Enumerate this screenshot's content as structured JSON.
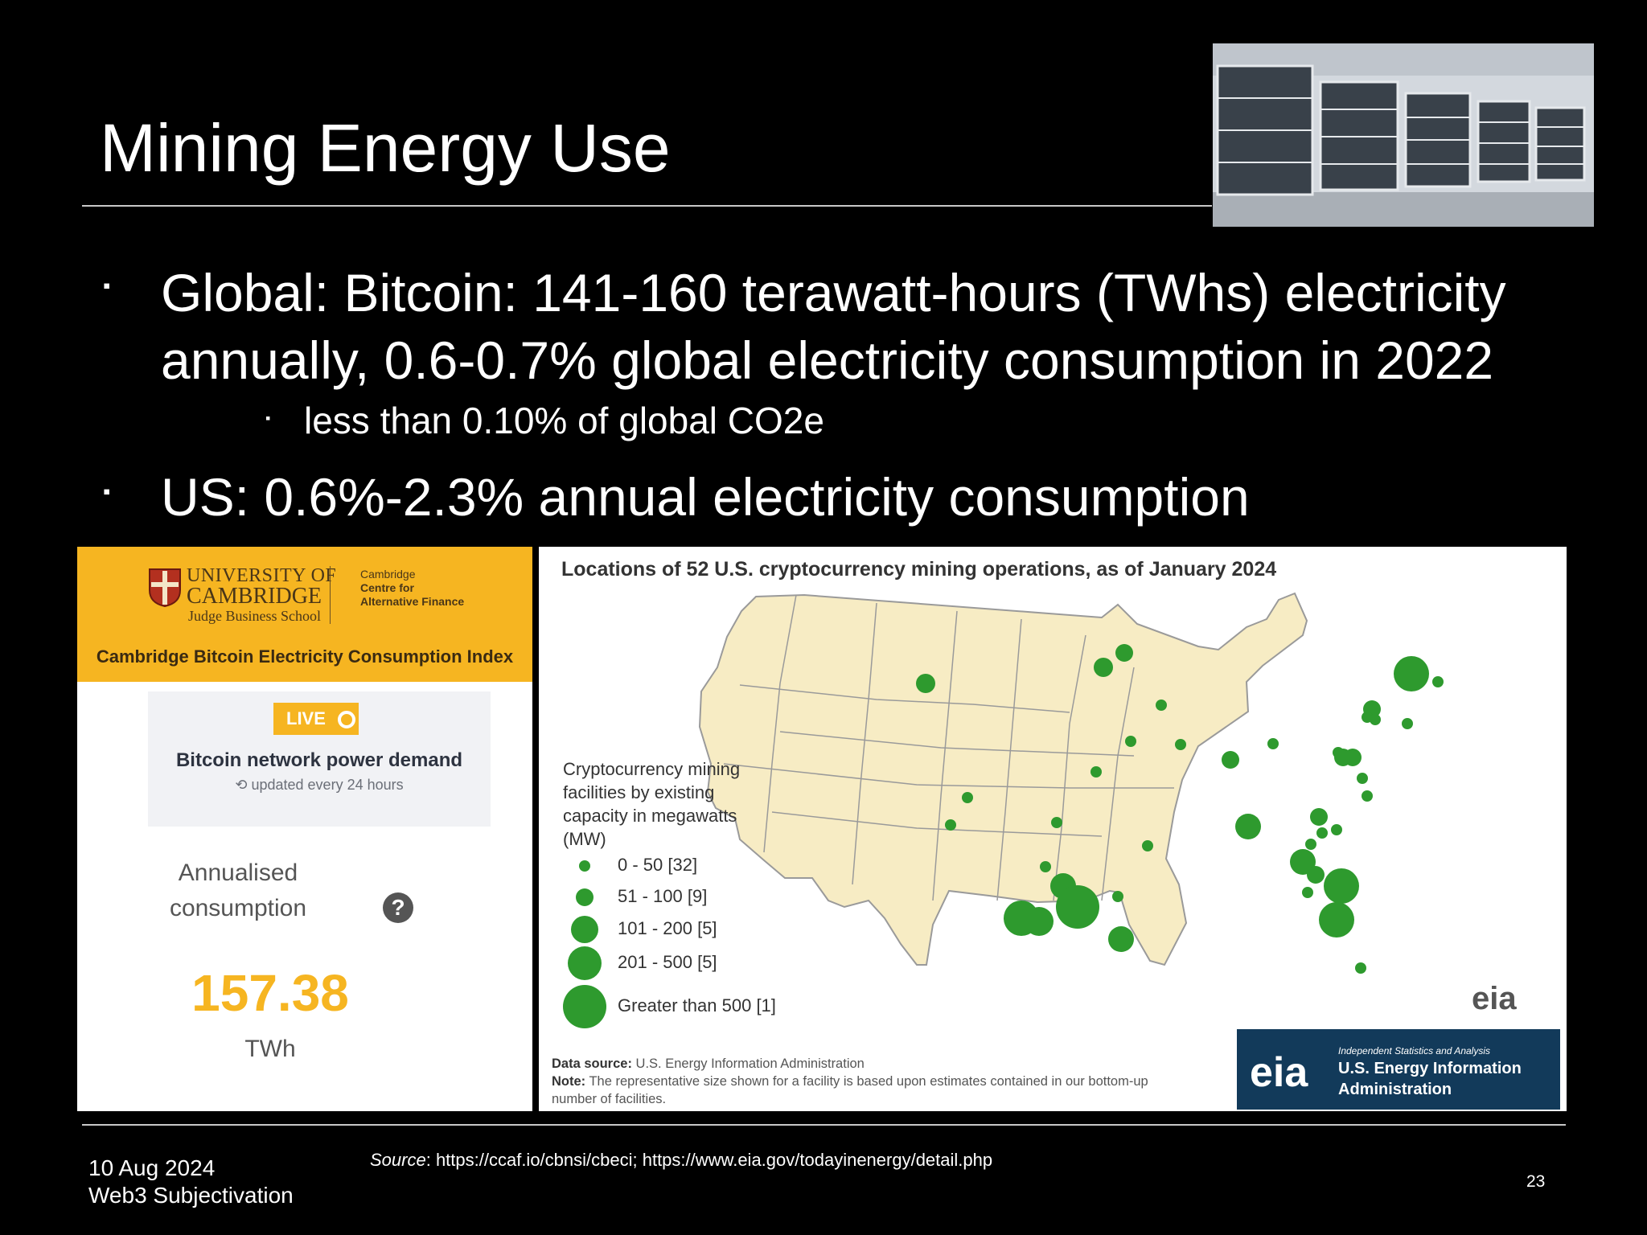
{
  "slide": {
    "title": "Mining Energy Use",
    "bullet1": "Global: Bitcoin: 141-160 terawatt-hours (TWhs) electricity annually, 0.6-0.7% global electricity consumption in 2022",
    "subbullet1": "less than 0.10% of global CO2e",
    "bullet2": "US: 0.6%-2.3% annual electricity consumption",
    "bullet_marker": "▪",
    "photo_icon": "mining-rigs-photo"
  },
  "cambridge": {
    "uni_line1": "UNIVERSITY OF",
    "uni_line2": "CAMBRIDGE",
    "school": "Judge Business School",
    "centre_line1": "Cambridge",
    "centre_rest": "Centre for Alternative Finance",
    "index_title": "Cambridge Bitcoin Electricity Consumption Index",
    "live_badge": "LIVE",
    "card_title": "Bitcoin network power demand",
    "card_sub": "updated every 24 hours",
    "annual_line1": "Annualised",
    "annual_line2": "consumption",
    "help_icon": "?",
    "value": "157.38",
    "unit": "TWh",
    "accent": "#f6b521"
  },
  "map": {
    "title": "Locations of 52 U.S. cryptocurrency mining operations, as of January 2024",
    "legend_title": "Cryptocurrency mining facilities by existing capacity in megawatts (MW)",
    "legend": [
      {
        "label": "0 - 50 [32]"
      },
      {
        "label": "51 - 100 [9]"
      },
      {
        "label": "101 - 200 [5]"
      },
      {
        "label": "201 - 500 [5]"
      },
      {
        "label": "Greater than 500 [1]"
      }
    ],
    "logo": "eia",
    "data_source_label": "Data source:",
    "data_source": "U.S. Energy Information Administration",
    "note_label": "Note:",
    "note": "The representative size shown for a facility is based upon estimates contained in our bottom-up",
    "note_cont": "number of facilities.",
    "eia_box_small": "Independent Statistics and Analysis",
    "eia_box_name": "U.S. Energy Information Administration",
    "dot_color": "#2e9a2e",
    "land_color": "#f7ecc4"
  },
  "footer": {
    "date": "10 Aug 2024",
    "name": "Web3 Subjectivation",
    "source_label": "Source",
    "source_text": ": https://ccaf.io/cbnsi/cbeci; https://www.eia.gov/todayinenergy/detail.php",
    "page": "23"
  }
}
